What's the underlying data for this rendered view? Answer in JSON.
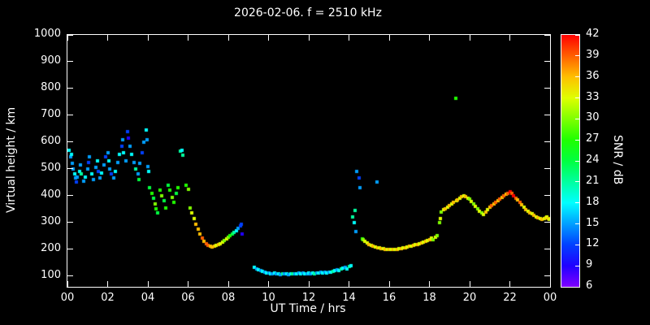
{
  "chart_data": {
    "type": "scatter",
    "title": "2026-02-06. f = 2510 kHz",
    "xlabel": "UT Time / hrs",
    "ylabel": "Virtual height / km",
    "xlim": [
      0,
      24
    ],
    "ylim": [
      60,
      1000
    ],
    "grid": false,
    "legend": "colorbar right, SNR / dB, rainbow purple(6) to red(42)",
    "colorbar": {
      "label": "SNR / dB",
      "min": 6,
      "max": 42,
      "ticks": [
        6,
        9,
        12,
        15,
        18,
        21,
        24,
        27,
        30,
        33,
        36,
        39,
        42
      ]
    },
    "xticks": {
      "values": [
        0,
        2,
        4,
        6,
        8,
        10,
        12,
        14,
        16,
        18,
        20,
        22,
        24
      ],
      "labels": [
        "00",
        "02",
        "04",
        "06",
        "08",
        "10",
        "12",
        "14",
        "16",
        "18",
        "20",
        "22",
        "00"
      ]
    },
    "yticks": {
      "values": [
        100,
        200,
        300,
        400,
        500,
        600,
        700,
        800,
        900,
        1000
      ],
      "labels": [
        "100",
        "200",
        "300",
        "400",
        "500",
        "600",
        "700",
        "800",
        "900",
        "1000"
      ]
    },
    "points_format": [
      "ut_hours",
      "virtual_height_km",
      "snr_db"
    ],
    "points": [
      [
        0.1,
        570,
        18
      ],
      [
        0.15,
        545,
        15
      ],
      [
        0.2,
        555,
        18
      ],
      [
        0.25,
        520,
        15
      ],
      [
        0.3,
        500,
        15
      ],
      [
        0.35,
        480,
        18
      ],
      [
        0.4,
        465,
        15
      ],
      [
        0.45,
        450,
        12
      ],
      [
        0.5,
        470,
        15
      ],
      [
        0.6,
        490,
        18
      ],
      [
        0.65,
        515,
        15
      ],
      [
        0.7,
        480,
        21
      ],
      [
        0.8,
        455,
        15
      ],
      [
        0.9,
        470,
        18
      ],
      [
        1.0,
        500,
        15
      ],
      [
        1.05,
        525,
        12
      ],
      [
        1.1,
        545,
        15
      ],
      [
        1.2,
        480,
        18
      ],
      [
        1.3,
        460,
        15
      ],
      [
        1.4,
        505,
        15
      ],
      [
        1.5,
        530,
        18
      ],
      [
        1.55,
        490,
        12
      ],
      [
        1.6,
        465,
        15
      ],
      [
        1.7,
        485,
        18
      ],
      [
        1.8,
        515,
        15
      ],
      [
        1.9,
        545,
        12
      ],
      [
        2.0,
        560,
        15
      ],
      [
        2.05,
        530,
        18
      ],
      [
        2.1,
        500,
        15
      ],
      [
        2.2,
        480,
        12
      ],
      [
        2.3,
        465,
        15
      ],
      [
        2.4,
        490,
        18
      ],
      [
        2.5,
        525,
        15
      ],
      [
        2.6,
        555,
        18
      ],
      [
        2.7,
        585,
        12
      ],
      [
        2.75,
        610,
        15
      ],
      [
        2.8,
        560,
        18
      ],
      [
        2.9,
        530,
        15
      ],
      [
        3.0,
        640,
        12
      ],
      [
        3.05,
        615,
        9
      ],
      [
        3.1,
        585,
        15
      ],
      [
        3.2,
        555,
        18
      ],
      [
        3.3,
        525,
        15
      ],
      [
        3.4,
        500,
        21
      ],
      [
        3.5,
        480,
        15
      ],
      [
        3.55,
        460,
        24
      ],
      [
        3.6,
        520,
        15
      ],
      [
        3.7,
        560,
        12
      ],
      [
        3.8,
        600,
        15
      ],
      [
        3.9,
        645,
        18
      ],
      [
        3.95,
        610,
        15
      ],
      [
        4.0,
        510,
        15
      ],
      [
        4.05,
        490,
        18
      ],
      [
        4.1,
        430,
        24
      ],
      [
        4.2,
        410,
        27
      ],
      [
        4.3,
        390,
        24
      ],
      [
        4.35,
        370,
        30
      ],
      [
        4.4,
        350,
        27
      ],
      [
        4.5,
        335,
        24
      ],
      [
        4.6,
        420,
        27
      ],
      [
        4.7,
        400,
        30
      ],
      [
        4.8,
        380,
        24
      ],
      [
        4.9,
        355,
        27
      ],
      [
        5.0,
        440,
        24
      ],
      [
        5.1,
        420,
        27
      ],
      [
        5.2,
        395,
        30
      ],
      [
        5.3,
        375,
        27
      ],
      [
        5.4,
        410,
        24
      ],
      [
        5.5,
        430,
        27
      ],
      [
        5.6,
        565,
        21
      ],
      [
        5.7,
        570,
        18
      ],
      [
        5.75,
        550,
        21
      ],
      [
        5.9,
        440,
        27
      ],
      [
        6.0,
        425,
        30
      ],
      [
        6.1,
        355,
        30
      ],
      [
        6.2,
        335,
        33
      ],
      [
        6.3,
        315,
        33
      ],
      [
        6.4,
        295,
        36
      ],
      [
        6.5,
        275,
        36
      ],
      [
        6.6,
        258,
        36
      ],
      [
        6.7,
        243,
        39
      ],
      [
        6.8,
        231,
        36
      ],
      [
        6.9,
        222,
        39
      ],
      [
        7.0,
        216,
        39
      ],
      [
        7.1,
        212,
        36
      ],
      [
        7.2,
        210,
        36
      ],
      [
        7.3,
        211,
        36
      ],
      [
        7.4,
        214,
        33
      ],
      [
        7.5,
        217,
        36
      ],
      [
        7.6,
        221,
        33
      ],
      [
        7.7,
        226,
        33
      ],
      [
        7.8,
        232,
        30
      ],
      [
        7.9,
        238,
        33
      ],
      [
        8.0,
        244,
        30
      ],
      [
        8.1,
        250,
        27
      ],
      [
        8.2,
        256,
        24
      ],
      [
        8.3,
        262,
        21
      ],
      [
        8.4,
        270,
        18
      ],
      [
        8.5,
        278,
        15
      ],
      [
        8.6,
        287,
        12
      ],
      [
        8.65,
        292,
        12
      ],
      [
        8.7,
        258,
        9
      ],
      [
        9.3,
        133,
        18
      ],
      [
        9.4,
        128,
        15
      ],
      [
        9.5,
        124,
        18
      ],
      [
        9.6,
        120,
        15
      ],
      [
        9.7,
        118,
        18
      ],
      [
        9.8,
        115,
        15
      ],
      [
        9.9,
        113,
        18
      ],
      [
        10.0,
        112,
        15
      ],
      [
        10.1,
        110,
        18
      ],
      [
        10.2,
        109,
        15
      ],
      [
        10.3,
        111,
        18
      ],
      [
        10.4,
        108,
        15
      ],
      [
        10.5,
        110,
        18
      ],
      [
        10.6,
        107,
        15
      ],
      [
        10.7,
        109,
        21
      ],
      [
        10.8,
        108,
        15
      ],
      [
        10.9,
        110,
        18
      ],
      [
        11.0,
        107,
        15
      ],
      [
        11.1,
        109,
        18
      ],
      [
        11.2,
        108,
        21
      ],
      [
        11.3,
        110,
        15
      ],
      [
        11.4,
        108,
        18
      ],
      [
        11.5,
        111,
        15
      ],
      [
        11.6,
        109,
        18
      ],
      [
        11.7,
        112,
        15
      ],
      [
        11.8,
        110,
        18
      ],
      [
        11.9,
        108,
        15
      ],
      [
        12.0,
        111,
        18
      ],
      [
        12.1,
        109,
        15
      ],
      [
        12.2,
        112,
        18
      ],
      [
        12.3,
        110,
        21
      ],
      [
        12.4,
        113,
        15
      ],
      [
        12.5,
        111,
        18
      ],
      [
        12.6,
        114,
        15
      ],
      [
        12.7,
        112,
        18
      ],
      [
        12.8,
        115,
        15
      ],
      [
        12.9,
        113,
        18
      ],
      [
        13.0,
        116,
        15
      ],
      [
        13.1,
        114,
        18
      ],
      [
        13.2,
        118,
        21
      ],
      [
        13.3,
        121,
        18
      ],
      [
        13.4,
        124,
        15
      ],
      [
        13.5,
        122,
        18
      ],
      [
        13.6,
        126,
        21
      ],
      [
        13.7,
        129,
        18
      ],
      [
        13.8,
        132,
        15
      ],
      [
        13.9,
        128,
        18
      ],
      [
        14.0,
        135,
        21
      ],
      [
        14.1,
        140,
        18
      ],
      [
        14.2,
        320,
        21
      ],
      [
        14.25,
        300,
        18
      ],
      [
        14.3,
        345,
        21
      ],
      [
        14.35,
        265,
        15
      ],
      [
        14.4,
        490,
        15
      ],
      [
        14.5,
        465,
        12
      ],
      [
        14.55,
        430,
        15
      ],
      [
        15.4,
        452,
        15
      ],
      [
        14.65,
        240,
        27
      ],
      [
        14.7,
        235,
        30
      ],
      [
        14.8,
        229,
        33
      ],
      [
        14.9,
        224,
        33
      ],
      [
        15.0,
        219,
        36
      ],
      [
        15.1,
        215,
        33
      ],
      [
        15.2,
        212,
        36
      ],
      [
        15.3,
        209,
        33
      ],
      [
        15.45,
        207,
        36
      ],
      [
        15.5,
        205,
        33
      ],
      [
        15.6,
        203,
        36
      ],
      [
        15.7,
        202,
        33
      ],
      [
        15.8,
        201,
        36
      ],
      [
        15.9,
        200,
        33
      ],
      [
        16.0,
        199,
        36
      ],
      [
        16.1,
        198,
        33
      ],
      [
        16.2,
        199,
        36
      ],
      [
        16.3,
        200,
        33
      ],
      [
        16.4,
        201,
        36
      ],
      [
        16.5,
        202,
        33
      ],
      [
        16.6,
        204,
        36
      ],
      [
        16.7,
        205,
        33
      ],
      [
        16.8,
        207,
        36
      ],
      [
        16.9,
        209,
        33
      ],
      [
        17.0,
        211,
        36
      ],
      [
        17.1,
        213,
        33
      ],
      [
        17.2,
        215,
        36
      ],
      [
        17.3,
        217,
        33
      ],
      [
        17.4,
        219,
        36
      ],
      [
        17.5,
        222,
        33
      ],
      [
        17.6,
        225,
        36
      ],
      [
        17.7,
        228,
        33
      ],
      [
        17.8,
        231,
        36
      ],
      [
        17.9,
        234,
        33
      ],
      [
        18.0,
        237,
        36
      ],
      [
        18.1,
        241,
        33
      ],
      [
        18.2,
        236,
        30
      ],
      [
        18.3,
        245,
        33
      ],
      [
        18.4,
        252,
        30
      ],
      [
        18.5,
        300,
        30
      ],
      [
        18.55,
        315,
        33
      ],
      [
        18.6,
        340,
        30
      ],
      [
        18.7,
        347,
        33
      ],
      [
        18.8,
        352,
        36
      ],
      [
        18.9,
        357,
        33
      ],
      [
        19.0,
        362,
        36
      ],
      [
        19.1,
        368,
        33
      ],
      [
        19.2,
        374,
        36
      ],
      [
        19.3,
        765,
        27
      ],
      [
        19.35,
        380,
        33
      ],
      [
        19.4,
        385,
        36
      ],
      [
        19.5,
        390,
        33
      ],
      [
        19.6,
        396,
        36
      ],
      [
        19.7,
        400,
        33
      ],
      [
        19.8,
        396,
        36
      ],
      [
        19.9,
        391,
        33
      ],
      [
        20.0,
        386,
        30
      ],
      [
        20.1,
        378,
        33
      ],
      [
        20.2,
        369,
        30
      ],
      [
        20.3,
        360,
        33
      ],
      [
        20.4,
        350,
        30
      ],
      [
        20.5,
        342,
        33
      ],
      [
        20.6,
        336,
        30
      ],
      [
        20.7,
        331,
        33
      ],
      [
        20.8,
        338,
        36
      ],
      [
        20.9,
        348,
        33
      ],
      [
        21.0,
        358,
        36
      ],
      [
        21.1,
        364,
        39
      ],
      [
        21.2,
        370,
        36
      ],
      [
        21.3,
        376,
        39
      ],
      [
        21.4,
        382,
        36
      ],
      [
        21.5,
        388,
        39
      ],
      [
        21.6,
        394,
        36
      ],
      [
        21.7,
        400,
        39
      ],
      [
        21.8,
        405,
        36
      ],
      [
        21.9,
        410,
        39
      ],
      [
        22.0,
        416,
        42
      ],
      [
        22.1,
        410,
        39
      ],
      [
        22.2,
        401,
        42
      ],
      [
        22.3,
        392,
        39
      ],
      [
        22.4,
        383,
        36
      ],
      [
        22.5,
        374,
        39
      ],
      [
        22.6,
        365,
        36
      ],
      [
        22.7,
        356,
        33
      ],
      [
        22.8,
        349,
        36
      ],
      [
        22.9,
        343,
        33
      ],
      [
        23.0,
        337,
        36
      ],
      [
        23.1,
        332,
        33
      ],
      [
        23.2,
        327,
        36
      ],
      [
        23.3,
        322,
        33
      ],
      [
        23.4,
        318,
        36
      ],
      [
        23.5,
        315,
        33
      ],
      [
        23.6,
        312,
        36
      ],
      [
        23.7,
        314,
        33
      ],
      [
        23.8,
        317,
        36
      ],
      [
        23.85,
        320,
        33
      ],
      [
        23.9,
        316,
        36
      ],
      [
        23.95,
        313,
        33
      ]
    ]
  }
}
